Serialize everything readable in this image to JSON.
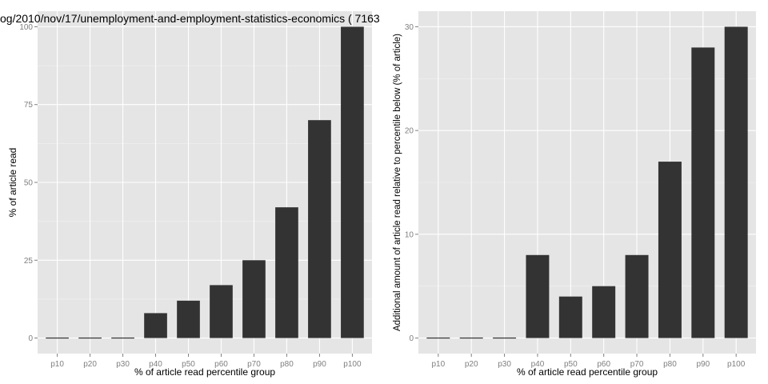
{
  "chart_data": [
    {
      "type": "bar",
      "title": "og/2010/nov/17/unemployment-and-employment-statistics-economics ( 7163",
      "xlabel": "% of article read percentile group",
      "ylabel": "% of article read",
      "categories": [
        "p10",
        "p20",
        "p30",
        "p40",
        "p50",
        "p60",
        "p70",
        "p80",
        "p90",
        "p100"
      ],
      "values": [
        0,
        0,
        0,
        8,
        12,
        17,
        25,
        42,
        70,
        100
      ],
      "ylim": [
        -5,
        105
      ],
      "yticks": [
        0,
        25,
        50,
        75,
        100
      ],
      "colors": {
        "bar": "#333333",
        "panel": "#e5e5e5",
        "grid": "#ffffff"
      },
      "grid": true
    },
    {
      "type": "bar",
      "title": "",
      "xlabel": "% of article read percentile group",
      "ylabel": "Additional amount of article read relative to percentile below (% of article)",
      "categories": [
        "p10",
        "p20",
        "p30",
        "p40",
        "p50",
        "p60",
        "p70",
        "p80",
        "p90",
        "p100"
      ],
      "values": [
        0,
        0,
        0,
        8,
        4,
        5,
        8,
        17,
        28,
        30
      ],
      "ylim": [
        -1.5,
        31.5
      ],
      "yticks": [
        0,
        10,
        20,
        30
      ],
      "colors": {
        "bar": "#333333",
        "panel": "#e5e5e5",
        "grid": "#ffffff"
      },
      "grid": true
    }
  ]
}
